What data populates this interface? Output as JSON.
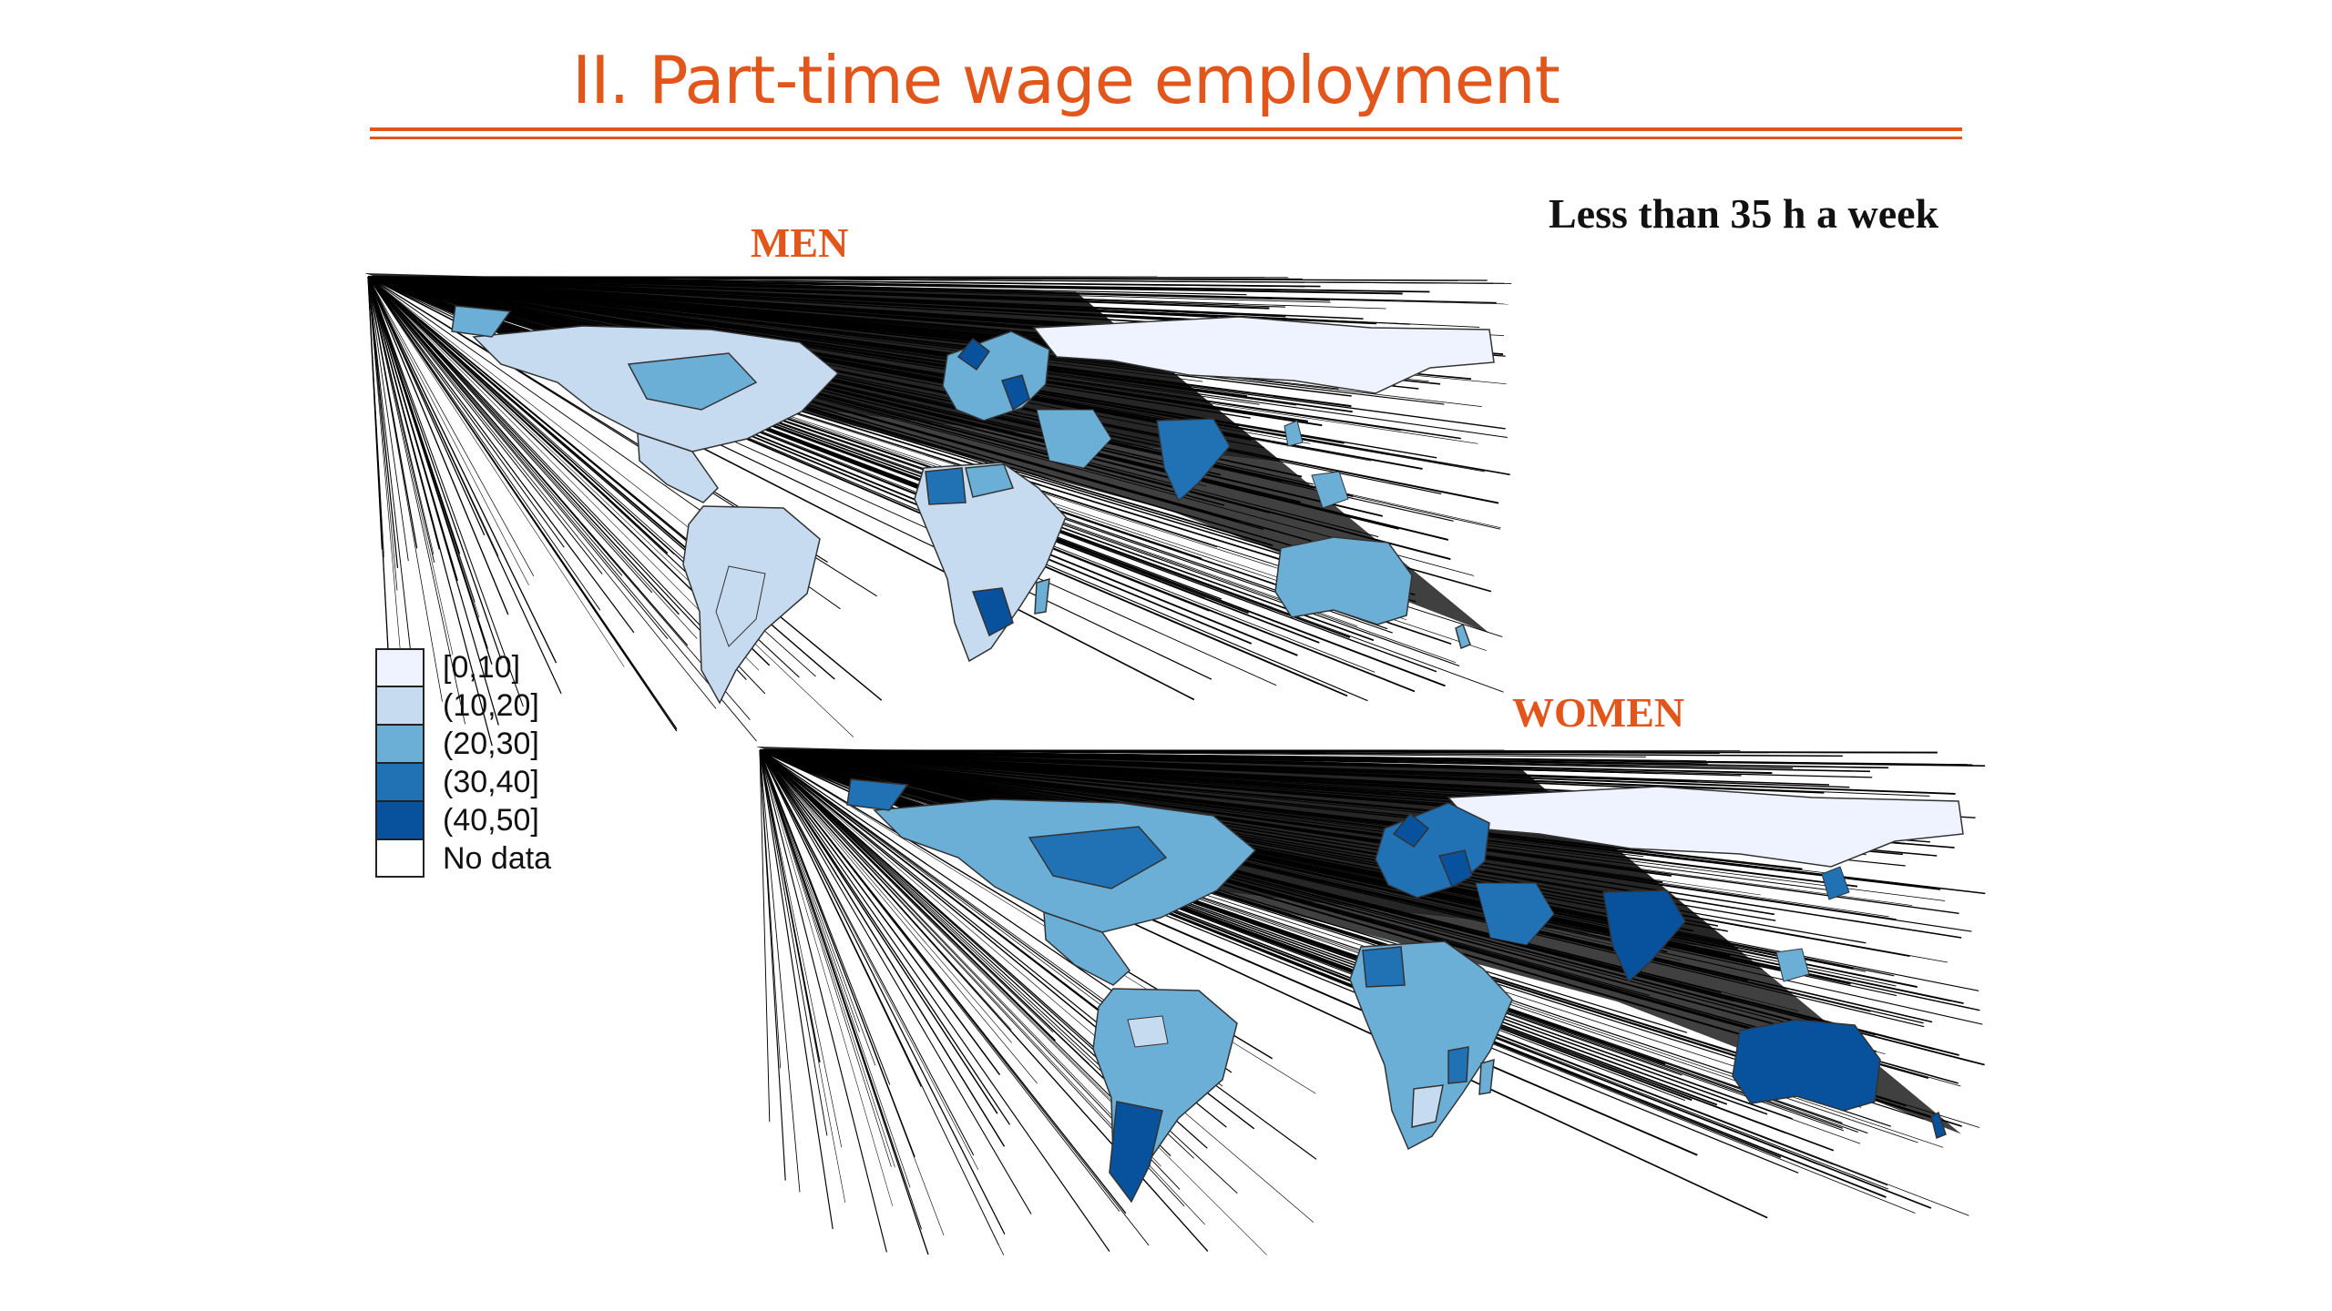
{
  "slide": {
    "title": "II. Part-time wage employment",
    "subtitle": "Less than 35 h a week",
    "accent_color": "#e2561b"
  },
  "maps": {
    "men": {
      "label": "MEN",
      "regions": [
        {
          "region": "North America",
          "class": "(10,20]"
        },
        {
          "region": "Central America",
          "class": "(10,20]"
        },
        {
          "region": "South America",
          "class": "(10,20]"
        },
        {
          "region": "Europe",
          "class": "(20,30]"
        },
        {
          "region": "Russia",
          "class": "[0,10]"
        },
        {
          "region": "Africa",
          "class": "(10,20]"
        },
        {
          "region": "India",
          "class": "(30,40]"
        },
        {
          "region": "Australia",
          "class": "(20,30]"
        }
      ]
    },
    "women": {
      "label": "WOMEN",
      "regions": [
        {
          "region": "North America",
          "class": "(20,30]"
        },
        {
          "region": "Central America",
          "class": "(20,30]"
        },
        {
          "region": "South America",
          "class": "(20,30]"
        },
        {
          "region": "Argentina",
          "class": "(40,50]"
        },
        {
          "region": "Europe",
          "class": "(30,40]"
        },
        {
          "region": "Russia",
          "class": "[0,10]"
        },
        {
          "region": "Africa",
          "class": "(20,30]"
        },
        {
          "region": "India",
          "class": "(40,50]"
        },
        {
          "region": "Australia",
          "class": "(40,50]"
        }
      ]
    }
  },
  "legend": {
    "items": [
      {
        "label": "[0,10]",
        "color": "#eff3ff"
      },
      {
        "label": "(10,20]",
        "color": "#c6dbef"
      },
      {
        "label": "(20,30]",
        "color": "#6baed6"
      },
      {
        "label": "(30,40]",
        "color": "#2171b5"
      },
      {
        "label": "(40,50]",
        "color": "#08519c"
      },
      {
        "label": "No data",
        "color": "#ffffff"
      }
    ]
  }
}
